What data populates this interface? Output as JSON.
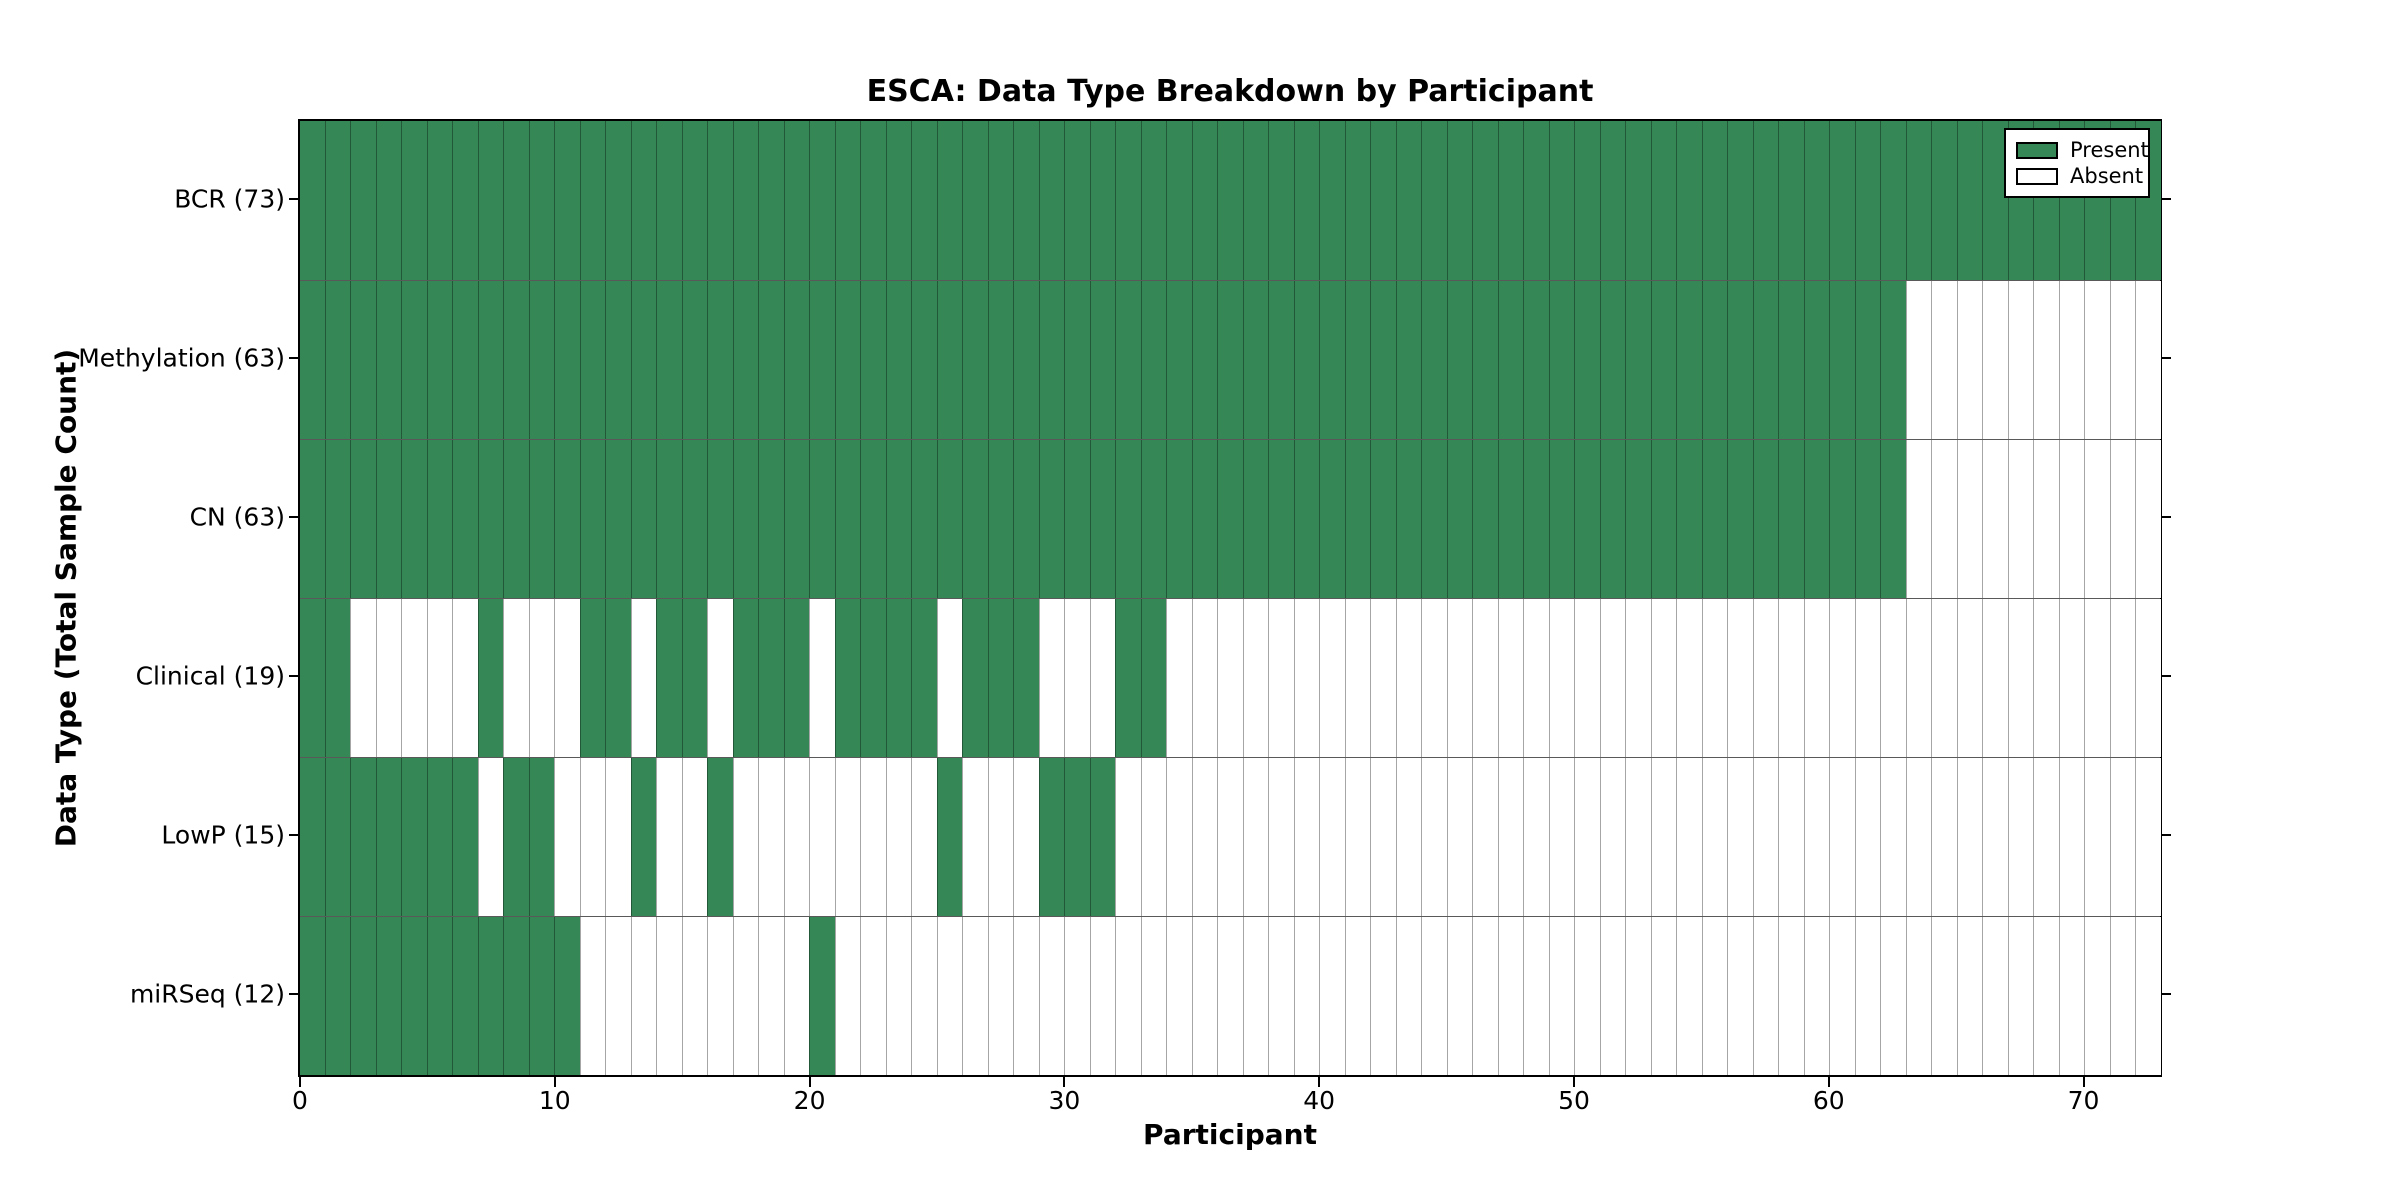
{
  "chart_data": {
    "type": "heatmap",
    "title": "ESCA: Data Type Breakdown by Participant",
    "xlabel": "Participant",
    "ylabel": "Data Type (Total Sample Count)",
    "x_range": [
      0,
      73
    ],
    "x_ticks": [
      0,
      10,
      20,
      30,
      40,
      50,
      60,
      70
    ],
    "n_participants": 73,
    "grid": true,
    "legend_position": "upper right",
    "legend": {
      "present": "Present",
      "absent": "Absent"
    },
    "colors": {
      "present": "#358856",
      "absent": "#ffffff"
    },
    "rows": [
      {
        "label": "BCR (73)",
        "data_type": "BCR",
        "total": 73,
        "present_ranges": [
          [
            0,
            72
          ]
        ]
      },
      {
        "label": "Methylation (63)",
        "data_type": "Methylation",
        "total": 63,
        "present_ranges": [
          [
            0,
            62
          ]
        ]
      },
      {
        "label": "CN (63)",
        "data_type": "CN",
        "total": 63,
        "present_ranges": [
          [
            0,
            62
          ]
        ]
      },
      {
        "label": "Clinical (19)",
        "data_type": "Clinical",
        "total": 19,
        "present_ranges": [
          [
            0,
            1
          ],
          [
            7,
            7
          ],
          [
            11,
            12
          ],
          [
            14,
            15
          ],
          [
            17,
            19
          ],
          [
            21,
            24
          ],
          [
            26,
            28
          ],
          [
            32,
            33
          ]
        ]
      },
      {
        "label": "LowP (15)",
        "data_type": "LowP",
        "total": 15,
        "present_ranges": [
          [
            0,
            6
          ],
          [
            8,
            9
          ],
          [
            13,
            13
          ],
          [
            16,
            16
          ],
          [
            25,
            25
          ],
          [
            29,
            31
          ]
        ]
      },
      {
        "label": "miRSeq (12)",
        "data_type": "miRSeq",
        "total": 12,
        "present_ranges": [
          [
            0,
            10
          ],
          [
            20,
            20
          ]
        ]
      }
    ]
  }
}
